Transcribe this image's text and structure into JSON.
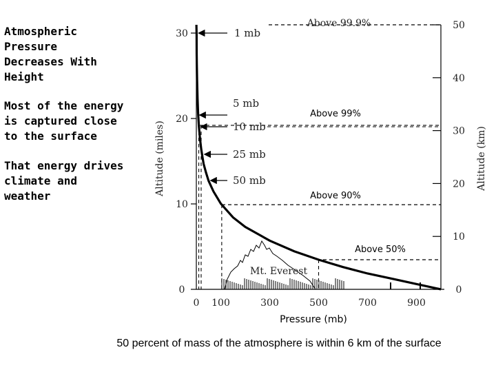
{
  "sidebar": {
    "text1": "Atmospheric\nPressure\nDecreases With\nHeight",
    "text2": "Most of the energy\nis captured close\nto the surface",
    "text3": "That energy drives\nclimate and\nweather"
  },
  "caption": "50 percent of mass of the atmosphere is within 6 km of the surface",
  "chart_data": {
    "type": "line",
    "xlabel": "Pressure (mb)",
    "ylabel_left": "Altitude (miles)",
    "ylabel_right": "Altitude (km)",
    "xlim": [
      0,
      1000
    ],
    "ylim_miles": [
      0,
      30
    ],
    "ylim_km": [
      0,
      50
    ],
    "x_ticks": [
      0,
      100,
      300,
      500,
      700,
      900
    ],
    "y_ticks_miles": [
      0,
      10,
      20,
      30
    ],
    "y_ticks_km": [
      0,
      10,
      20,
      30,
      40,
      50
    ],
    "grid": false,
    "series": [
      {
        "x": [
          1013,
          900,
          800,
          700,
          600,
          500,
          400,
          300,
          200,
          150,
          100,
          70,
          50,
          40,
          30,
          25,
          20,
          15,
          10,
          7,
          5,
          3,
          2,
          1.5,
          1
        ],
        "y_km": [
          0,
          1.0,
          2.0,
          3.0,
          4.2,
          5.6,
          7.2,
          9.2,
          11.8,
          13.6,
          16.2,
          18.5,
          20.5,
          22.0,
          23.7,
          25.0,
          26.5,
          28.5,
          31.0,
          33.5,
          36.0,
          39.5,
          42.5,
          44.5,
          48.0
        ]
      }
    ],
    "arrow_labels": [
      {
        "text": "1 mb",
        "pressure": 1,
        "miles": 30
      },
      {
        "text": "5 mb",
        "pressure": 5,
        "miles": 22
      },
      {
        "text": "10 mb",
        "pressure": 10,
        "miles": 19.5
      },
      {
        "text": "25 mb",
        "pressure": 25,
        "miles": 15.5
      },
      {
        "text": "50 mb",
        "pressure": 50,
        "miles": 12.7
      }
    ],
    "reference_levels": [
      {
        "label": "Above 99.9%",
        "km": 50
      },
      {
        "label": "Above 99%",
        "km": 31
      },
      {
        "label": "Above 90%",
        "km": 16
      },
      {
        "label": "Above 50%",
        "km": 5.6
      }
    ],
    "annotation": "Mt. Everest"
  }
}
